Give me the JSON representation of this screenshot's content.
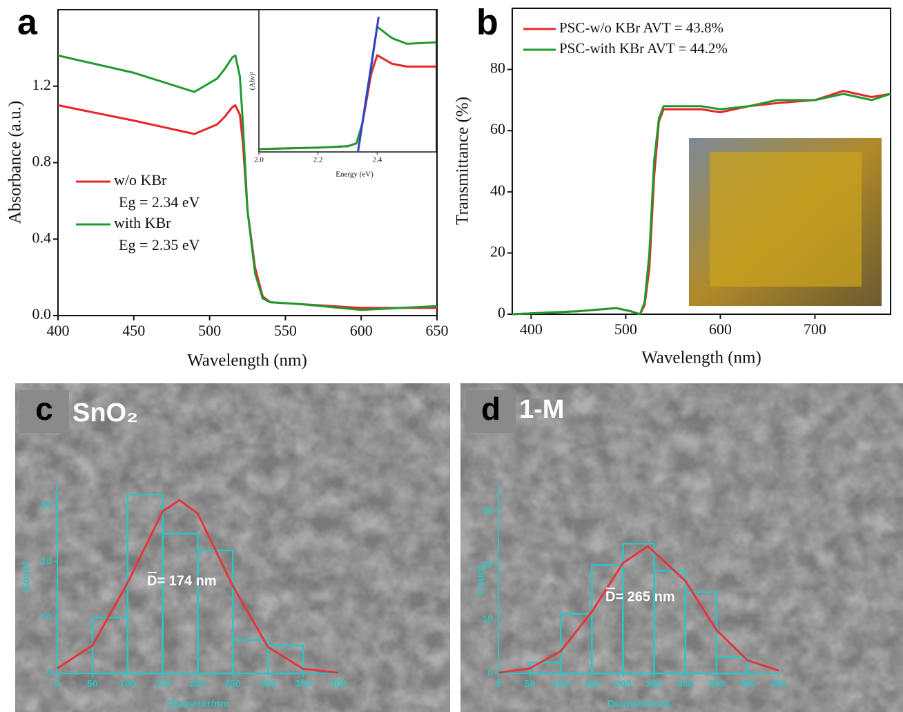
{
  "chart_data": [
    {
      "type": "line",
      "panel_label": "a",
      "xlabel": "Wavelength (nm)",
      "ylabel": "Absorbance (a.u.)",
      "xlim": [
        400,
        650
      ],
      "ylim": [
        0,
        1.6
      ],
      "xticks": [
        400,
        450,
        500,
        550,
        600,
        650
      ],
      "yticks": [
        {
          "value": 0,
          "label": "0.0"
        },
        0.4,
        0.8,
        1.2
      ],
      "x": [
        400,
        450,
        490,
        505,
        510,
        515,
        517,
        520,
        522,
        525,
        530,
        535,
        540,
        560,
        600,
        650
      ],
      "series": [
        {
          "name": "w/o KBr",
          "note": "Eg = 2.34 eV",
          "color": "#e8242a",
          "values": [
            1.1,
            1.02,
            0.95,
            1.0,
            1.04,
            1.09,
            1.1,
            1.05,
            0.9,
            0.55,
            0.25,
            0.1,
            0.07,
            0.06,
            0.04,
            0.04
          ]
        },
        {
          "name": "with KBr",
          "note": "Eg = 2.35 eV",
          "color": "#1f9a2e",
          "values": [
            1.36,
            1.27,
            1.17,
            1.24,
            1.29,
            1.35,
            1.36,
            1.25,
            1.0,
            0.55,
            0.22,
            0.09,
            0.07,
            0.06,
            0.03,
            0.05
          ]
        }
      ],
      "inset": {
        "type": "line",
        "xlabel": "Energy (eV)",
        "ylabel": "(Ahν)²",
        "xlim": [
          2.0,
          2.6
        ],
        "ylim": [
          0,
          1
        ],
        "xticks": [
          {
            "value": 2.0,
            "label": "2.0"
          },
          2.2,
          2.4
        ],
        "x": [
          2.0,
          2.2,
          2.3,
          2.33,
          2.35,
          2.38,
          2.4,
          2.45,
          2.5,
          2.6
        ],
        "series": [
          {
            "color": "#e8242a",
            "values": [
              0.02,
              0.03,
              0.04,
              0.06,
              0.2,
              0.55,
              0.68,
              0.62,
              0.6,
              0.6
            ]
          },
          {
            "color": "#1f9a2e",
            "values": [
              0.02,
              0.03,
              0.04,
              0.06,
              0.2,
              0.6,
              0.88,
              0.8,
              0.76,
              0.77
            ]
          }
        ],
        "fit": {
          "color": "#3040c8",
          "x": [
            2.335,
            2.405
          ],
          "values": [
            0,
            0.95
          ]
        }
      }
    },
    {
      "type": "line",
      "panel_label": "b",
      "xlabel": "Wavelength (nm)",
      "ylabel": "Transmittance (%)",
      "xlim": [
        380,
        780
      ],
      "ylim": [
        0,
        100
      ],
      "xticks": [
        400,
        500,
        600,
        700
      ],
      "yticks": [
        0,
        20,
        40,
        60,
        80
      ],
      "x": [
        380,
        450,
        490,
        505,
        515,
        520,
        525,
        530,
        535,
        540,
        560,
        580,
        600,
        630,
        660,
        700,
        730,
        760,
        780
      ],
      "series": [
        {
          "name": "PSC-w/o KBr  AVT = 43.8%",
          "color": "#e8242a",
          "values": [
            0,
            1,
            2,
            1,
            0,
            3,
            15,
            45,
            63,
            67,
            67,
            67,
            66,
            68,
            69,
            70,
            73,
            71,
            72
          ]
        },
        {
          "name": "PSC-with KBr  AVT = 44.2%",
          "color": "#1f9a2e",
          "values": [
            0,
            1,
            2,
            1,
            0,
            4,
            20,
            50,
            64,
            68,
            68,
            68,
            67,
            68,
            70,
            70,
            72,
            70,
            72
          ]
        }
      ]
    },
    {
      "type": "histogram",
      "panel_label": "c",
      "label": "SnO₂",
      "annotation": "D= 174 nm",
      "xlabel": "Diameter/nm",
      "ylabel": "Count",
      "xlim": [
        0,
        400
      ],
      "ylim": [
        0,
        34
      ],
      "xticks": [
        0,
        50,
        100,
        150,
        200,
        250,
        300,
        350,
        400
      ],
      "yticks": [
        0,
        10,
        20,
        30
      ],
      "bins": [
        50,
        100,
        150,
        200,
        250,
        300,
        350
      ],
      "values": [
        10,
        32,
        25,
        22,
        6,
        5
      ],
      "color": "#2ec4c4",
      "fit": {
        "color": "#e8343a",
        "x": [
          0,
          50,
          100,
          150,
          174,
          200,
          250,
          300,
          350,
          400
        ],
        "values": [
          0.9,
          5.0,
          16.2,
          29.0,
          31,
          28.6,
          15.6,
          4.7,
          0.8,
          0.1
        ]
      }
    },
    {
      "type": "histogram",
      "panel_label": "d",
      "label": "1-M",
      "annotation": "D= 265 nm",
      "xlabel": "Diameter/nm",
      "ylabel": "Count",
      "xlim": [
        0,
        450
      ],
      "ylim": [
        0,
        35
      ],
      "xticks": [
        0,
        50,
        100,
        150,
        200,
        250,
        300,
        350,
        400,
        450
      ],
      "yticks": [
        0,
        10,
        20,
        30
      ],
      "bins": [
        50,
        100,
        150,
        200,
        250,
        300,
        350,
        400
      ],
      "values": [
        2,
        11,
        20,
        24,
        19,
        15,
        3
      ],
      "color": "#2ec4c4",
      "fit": {
        "color": "#e8343a",
        "x": [
          0,
          50,
          100,
          150,
          200,
          240,
          300,
          350,
          400,
          450
        ],
        "values": [
          0.1,
          0.9,
          4.1,
          11.4,
          20.4,
          23.5,
          17.1,
          8.0,
          2.4,
          0.5
        ]
      }
    }
  ]
}
